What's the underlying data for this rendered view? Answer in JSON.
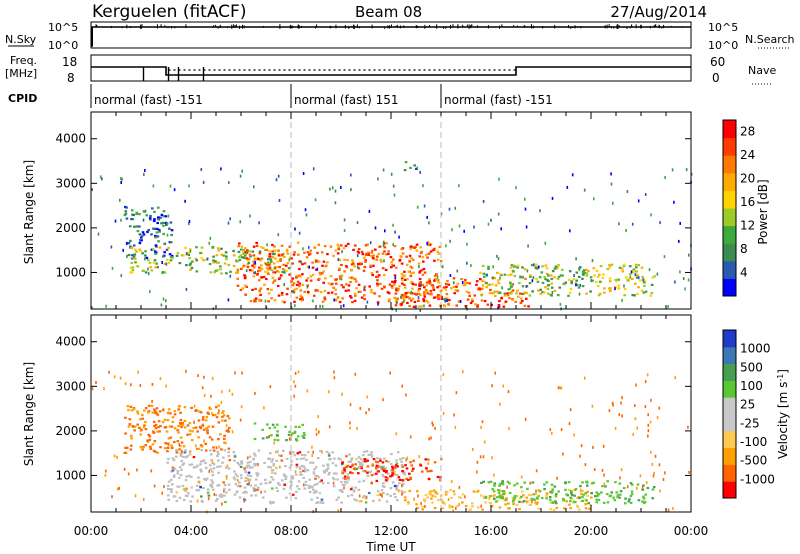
{
  "header": {
    "station": "Kerguelen (fitACF)",
    "beam": "Beam 08",
    "date": "27/Aug/2014"
  },
  "strip_labels": {
    "nsky": "N.Sky",
    "nsky_top": "10^5",
    "nsky_bottom": "10^0",
    "nsearch": "N.Search",
    "nsearch_top": "10^5",
    "nsearch_bottom": "10^0",
    "freq_top_line": "Freq.",
    "freq_bottom_line": "[MHz]",
    "freq_top": "18",
    "freq_bottom": "8",
    "nave": "Nave",
    "nave_top": "60",
    "nave_bottom": "0",
    "cpid": "CPID"
  },
  "cpid_segments": [
    {
      "label": "normal (fast) -151",
      "start_hour": 0
    },
    {
      "label": "normal (fast) 151",
      "start_hour": 8
    },
    {
      "label": "normal (fast) -151",
      "start_hour": 14
    }
  ],
  "colors": {
    "power_scale": [
      "#0000ff",
      "#2a5ab0",
      "#3c8c50",
      "#3faa3c",
      "#9ccc28",
      "#ffd200",
      "#ffaa00",
      "#ff7800",
      "#ff3c00",
      "#ff0000"
    ],
    "velocity_scale": [
      "#ff0000",
      "#ff6400",
      "#ffa000",
      "#ffc850",
      "#c8c8c8",
      "#c8c8c8",
      "#5ac832",
      "#46a050",
      "#3c78b4",
      "#1e3cc8"
    ],
    "ground_scatter": "#bebebe"
  },
  "chart_data": [
    {
      "type": "line",
      "name": "strip_nsky_nsearch",
      "x_hours": [
        0,
        0.05,
        0.1,
        24
      ],
      "nsky_level": "high (~10^5) after 00:05 UT",
      "ylim_log10": [
        0,
        5
      ]
    },
    {
      "type": "line",
      "name": "strip_freq_nave",
      "freq_segments": [
        {
          "start_hour": 0,
          "end_hour": 3.0,
          "level": "upper"
        },
        {
          "start_hour": 3.0,
          "end_hour": 17.0,
          "level": "lower"
        },
        {
          "start_hour": 17.0,
          "end_hour": 24,
          "level": "upper"
        }
      ],
      "freq_dips_hours": [
        2.1,
        3.1,
        3.5,
        4.5
      ],
      "nave_style": "dotted"
    },
    {
      "type": "heatmap",
      "name": "power",
      "xlabel": "",
      "ylabel": "Slant Range [km]",
      "x_ticks": [
        "00:00",
        "04:00",
        "08:00",
        "12:00",
        "16:00",
        "20:00",
        "00:00"
      ],
      "xlim_hours": [
        0,
        24
      ],
      "y_ticks": [
        1000,
        2000,
        3000,
        4000
      ],
      "ylim_km": [
        180,
        4600
      ],
      "colorbar": {
        "label": "Power [dB]",
        "ticks": [
          4,
          8,
          12,
          16,
          20,
          24,
          28
        ],
        "range": [
          0,
          30
        ]
      },
      "features": [
        {
          "t0": 1.3,
          "t1": 3.2,
          "r0": 1350,
          "r1": 2500,
          "value": "low"
        },
        {
          "t0": 1.5,
          "t1": 8.0,
          "r0": 1000,
          "r1": 1600,
          "value": "mid"
        },
        {
          "t0": 5.8,
          "t1": 14.0,
          "r0": 350,
          "r1": 1700,
          "value": "high"
        },
        {
          "t0": 12.0,
          "t1": 17.5,
          "r0": 250,
          "r1": 900,
          "value": "high"
        },
        {
          "t0": 15.5,
          "t1": 22.5,
          "r0": 500,
          "r1": 1200,
          "value": "mid"
        },
        {
          "t0": 12.5,
          "t1": 13.0,
          "r0": 3300,
          "r1": 3500,
          "value": "low"
        }
      ]
    },
    {
      "type": "heatmap",
      "name": "velocity",
      "xlabel": "Time UT",
      "ylabel": "Slant Range [km]",
      "x_ticks": [
        "00:00",
        "04:00",
        "08:00",
        "12:00",
        "16:00",
        "20:00",
        "00:00"
      ],
      "xlim_hours": [
        0,
        24
      ],
      "y_ticks": [
        1000,
        2000,
        3000,
        4000
      ],
      "ylim_km": [
        180,
        4600
      ],
      "colorbar": {
        "label": "Velocity [m s^-1]",
        "ticks": [
          1000,
          500,
          100,
          25,
          -25,
          -100,
          -500,
          -1000
        ]
      },
      "features": [
        {
          "t0": 1.3,
          "t1": 5.5,
          "r0": 1500,
          "r1": 2600,
          "value": "away (orange)"
        },
        {
          "t0": 3.0,
          "t1": 12.5,
          "r0": 400,
          "r1": 1600,
          "value": "ground scatter (grey)"
        },
        {
          "t0": 10.0,
          "t1": 14.0,
          "r0": 900,
          "r1": 1400,
          "value": "away (orange/red)"
        },
        {
          "t0": 12.5,
          "t1": 20.0,
          "r0": 250,
          "r1": 700,
          "value": "away (orange/yellow)"
        },
        {
          "t0": 15.5,
          "t1": 22.5,
          "r0": 400,
          "r1": 900,
          "value": "toward (green)"
        },
        {
          "t0": 6.5,
          "t1": 8.5,
          "r0": 1800,
          "r1": 2200,
          "value": "toward (green)"
        }
      ]
    }
  ]
}
